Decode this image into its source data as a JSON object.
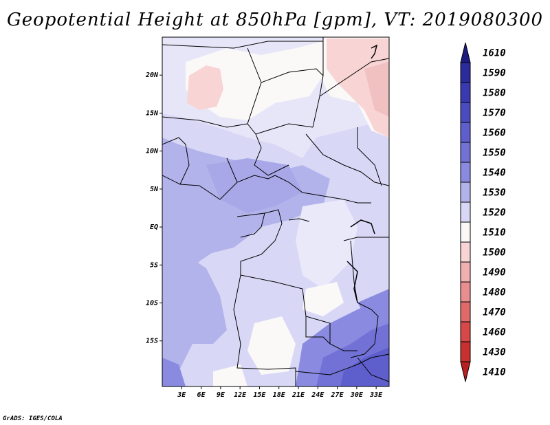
{
  "title": "Geopotential Height at 850hPa [gpm], VT: 2019080300",
  "credit": "GrADS: IGES/COLA",
  "map": {
    "lon_range": [
      0,
      35
    ],
    "lat_range": [
      -21,
      25
    ],
    "lon_ticks": [
      {
        "v": 3,
        "label": "3E"
      },
      {
        "v": 6,
        "label": "6E"
      },
      {
        "v": 9,
        "label": "9E"
      },
      {
        "v": 12,
        "label": "12E"
      },
      {
        "v": 15,
        "label": "15E"
      },
      {
        "v": 18,
        "label": "18E"
      },
      {
        "v": 21,
        "label": "21E"
      },
      {
        "v": 24,
        "label": "24E"
      },
      {
        "v": 27,
        "label": "27E"
      },
      {
        "v": 30,
        "label": "30E"
      },
      {
        "v": 33,
        "label": "33E"
      }
    ],
    "lat_ticks": [
      {
        "v": 20,
        "label": "20N"
      },
      {
        "v": 15,
        "label": "15N"
      },
      {
        "v": 10,
        "label": "10N"
      },
      {
        "v": 5,
        "label": "5N"
      },
      {
        "v": 0,
        "label": "EQ"
      },
      {
        "v": -5,
        "label": "5S"
      },
      {
        "v": -10,
        "label": "10S"
      },
      {
        "v": -15,
        "label": "15S"
      }
    ]
  },
  "colorbar": {
    "levels": [
      "1610",
      "1590",
      "1580",
      "1570",
      "1560",
      "1550",
      "1540",
      "1530",
      "1520",
      "1510",
      "1500",
      "1490",
      "1480",
      "1470",
      "1460",
      "1430",
      "1410"
    ],
    "colors": [
      "#1c1c80",
      "#2b2b9c",
      "#3a3ab0",
      "#4b4bc0",
      "#5e5ecc",
      "#7272d6",
      "#8a8ae0",
      "#b3b3ec",
      "#d8d8f6",
      "#fbf8f8",
      "#f8d4d4",
      "#f1b0b0",
      "#e98e8e",
      "#e06a6a",
      "#d74848",
      "#c93030",
      "#b82020"
    ]
  }
}
